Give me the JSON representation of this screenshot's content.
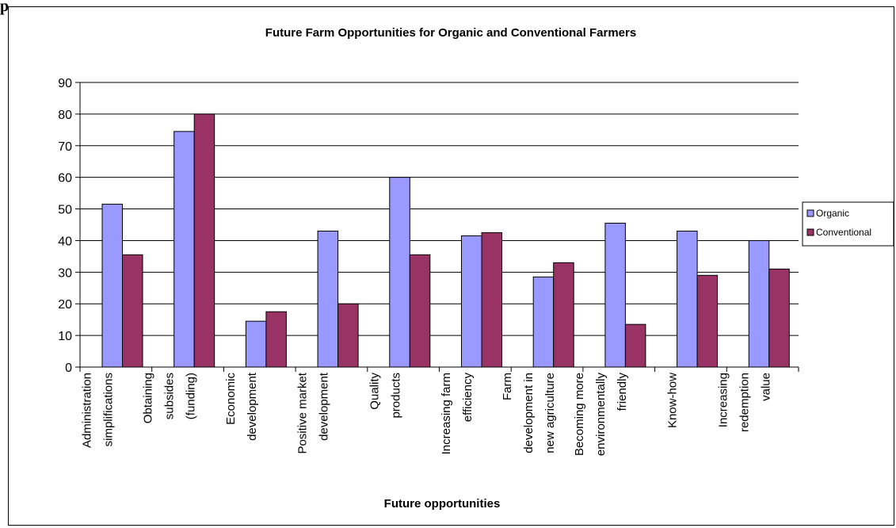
{
  "page": {
    "top_mark": "p"
  },
  "chart_data": {
    "type": "bar",
    "title": "Future Farm  Opportunities for Organic and Conventional Farmers",
    "xlabel": "Future opportunities",
    "ylabel": "",
    "ylim": [
      0,
      90
    ],
    "yticks": [
      "0",
      "10",
      "20",
      "30",
      "40",
      "50",
      "60",
      "70",
      "80",
      "90"
    ],
    "grid": true,
    "legend_position": "right",
    "categories": [
      "Administration simplifications",
      "Obtaining subsides (funding)",
      "Economic development",
      "Positive market development",
      "Quality products",
      "Increasing farm efficiency",
      "Farm development in new agriculture",
      "Becoming more environmentally friendly",
      "Know-how",
      "Increasing redemption value"
    ],
    "category_label_lines": [
      [
        "Administration",
        "simplifications"
      ],
      [
        "Obtaining",
        "subsides",
        "(funding)"
      ],
      [
        "Economic",
        "development"
      ],
      [
        "Positive market",
        "development"
      ],
      [
        "Quality",
        "products"
      ],
      [
        "Increasing farm",
        "efficiency"
      ],
      [
        "Farm",
        "development in",
        "new agriculture"
      ],
      [
        "Becoming more",
        "environmentally",
        "friendly"
      ],
      [
        "Know-how"
      ],
      [
        "Increasing",
        "redemption",
        "value"
      ]
    ],
    "series": [
      {
        "name": "Organic",
        "color": "#9999ff",
        "values": [
          51.5,
          74.5,
          14.5,
          43,
          60,
          41.5,
          28.5,
          45.5,
          43,
          40
        ]
      },
      {
        "name": "Conventional",
        "color": "#993366",
        "values": [
          35.5,
          80,
          17.5,
          20,
          35.5,
          42.5,
          33,
          13.5,
          29,
          31
        ]
      }
    ]
  }
}
